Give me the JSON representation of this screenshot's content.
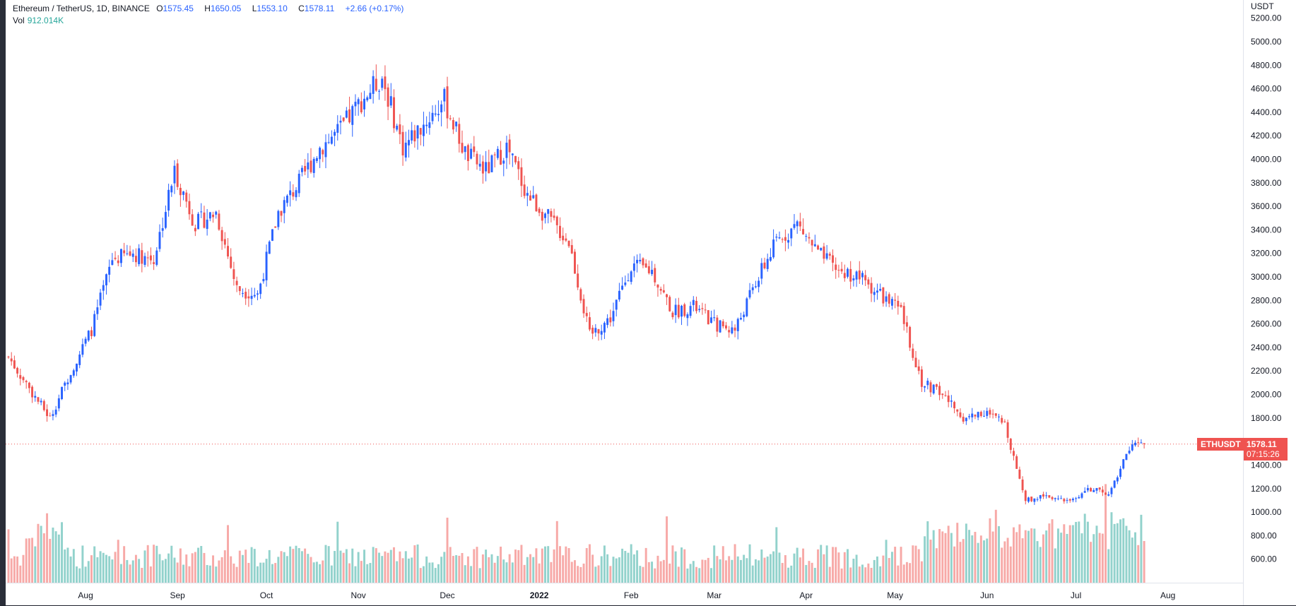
{
  "legend": {
    "symbol": "Ethereum / TetherUS, 1D, BINANCE",
    "open_label": "O",
    "open": "1575.45",
    "high_label": "H",
    "high": "1650.05",
    "low_label": "L",
    "low": "1553.10",
    "close_label": "C",
    "close": "1578.11",
    "change": "+2.66 (+0.17%)",
    "vol_label": "Vol",
    "vol_value": "912.014K"
  },
  "price_tag": {
    "symbol": "ETHUSDT",
    "price": "1578.11",
    "countdown": "07:15:26"
  },
  "colors": {
    "up": "#2962ff",
    "down": "#ef5350",
    "vol_up": "#26a69a",
    "vol_down": "#ef5350",
    "grid": "#ffffff",
    "text": "#131722"
  },
  "chart_data": {
    "type": "candlestick",
    "title": "",
    "y_unit": "USDT",
    "y_ticks": [
      600,
      800,
      1000,
      1200,
      1400,
      1600,
      1800,
      2000,
      2200,
      2400,
      2600,
      2800,
      3000,
      3200,
      3400,
      3600,
      3800,
      4000,
      4200,
      4400,
      4600,
      4800,
      5000,
      5200
    ],
    "y_tick_labels": [
      "600.00",
      "800.00",
      "1000.00",
      "1200.00",
      "1400.00",
      "1600.00",
      "1800.00",
      "2000.00",
      "2200.00",
      "2400.00",
      "2600.00",
      "2800.00",
      "3000.00",
      "3200.00",
      "3400.00",
      "3600.00",
      "3800.00",
      "4000.00",
      "4200.00",
      "4400.00",
      "4600.00",
      "4800.00",
      "5000.00",
      "5200.00"
    ],
    "ylim": [
      490,
      5270
    ],
    "x_ticks": [
      {
        "date": "2021-08-01",
        "label": "Aug"
      },
      {
        "date": "2021-09-01",
        "label": "Sep"
      },
      {
        "date": "2021-10-01",
        "label": "Oct"
      },
      {
        "date": "2021-11-01",
        "label": "Nov"
      },
      {
        "date": "2021-12-01",
        "label": "Dec"
      },
      {
        "date": "2022-01-01",
        "label": "2022"
      },
      {
        "date": "2022-02-01",
        "label": "Feb"
      },
      {
        "date": "2022-03-01",
        "label": "Mar"
      },
      {
        "date": "2022-04-01",
        "label": "Apr"
      },
      {
        "date": "2022-05-01",
        "label": "May"
      },
      {
        "date": "2022-06-01",
        "label": "Jun"
      },
      {
        "date": "2022-07-01",
        "label": "Jul"
      },
      {
        "date": "2022-08-01",
        "label": "Aug"
      }
    ],
    "xlim": [
      "2021-07-06",
      "2022-08-23"
    ],
    "close_series_weekly": [
      {
        "date": "2021-07-06",
        "close": 2320
      },
      {
        "date": "2021-07-13",
        "close": 2050
      },
      {
        "date": "2021-07-20",
        "close": 1800
      },
      {
        "date": "2021-07-27",
        "close": 2200
      },
      {
        "date": "2021-08-03",
        "close": 2550
      },
      {
        "date": "2021-08-10",
        "close": 3150
      },
      {
        "date": "2021-08-17",
        "close": 3200
      },
      {
        "date": "2021-08-24",
        "close": 3150
      },
      {
        "date": "2021-08-31",
        "close": 3900
      },
      {
        "date": "2021-09-07",
        "close": 3450
      },
      {
        "date": "2021-09-14",
        "close": 3550
      },
      {
        "date": "2021-09-21",
        "close": 2900
      },
      {
        "date": "2021-09-28",
        "close": 2850
      },
      {
        "date": "2021-10-05",
        "close": 3550
      },
      {
        "date": "2021-10-12",
        "close": 3800
      },
      {
        "date": "2021-10-19",
        "close": 4100
      },
      {
        "date": "2021-10-26",
        "close": 4250
      },
      {
        "date": "2021-11-02",
        "close": 4500
      },
      {
        "date": "2021-11-09",
        "close": 4700
      },
      {
        "date": "2021-11-16",
        "close": 4100
      },
      {
        "date": "2021-11-23",
        "close": 4300
      },
      {
        "date": "2021-11-30",
        "close": 4500
      },
      {
        "date": "2021-12-07",
        "close": 4050
      },
      {
        "date": "2021-12-14",
        "close": 3900
      },
      {
        "date": "2021-12-21",
        "close": 4100
      },
      {
        "date": "2021-12-28",
        "close": 3700
      },
      {
        "date": "2022-01-04",
        "close": 3500
      },
      {
        "date": "2022-01-11",
        "close": 3300
      },
      {
        "date": "2022-01-18",
        "close": 2500
      },
      {
        "date": "2022-01-25",
        "close": 2650
      },
      {
        "date": "2022-02-01",
        "close": 3100
      },
      {
        "date": "2022-02-08",
        "close": 3050
      },
      {
        "date": "2022-02-15",
        "close": 2700
      },
      {
        "date": "2022-02-22",
        "close": 2750
      },
      {
        "date": "2022-03-01",
        "close": 2600
      },
      {
        "date": "2022-03-08",
        "close": 2550
      },
      {
        "date": "2022-03-15",
        "close": 2950
      },
      {
        "date": "2022-03-22",
        "close": 3300
      },
      {
        "date": "2022-03-29",
        "close": 3450
      },
      {
        "date": "2022-04-05",
        "close": 3200
      },
      {
        "date": "2022-04-12",
        "close": 3050
      },
      {
        "date": "2022-04-19",
        "close": 3000
      },
      {
        "date": "2022-04-26",
        "close": 2850
      },
      {
        "date": "2022-05-03",
        "close": 2700
      },
      {
        "date": "2022-05-10",
        "close": 2100
      },
      {
        "date": "2022-05-17",
        "close": 2000
      },
      {
        "date": "2022-05-24",
        "close": 1800
      },
      {
        "date": "2022-05-31",
        "close": 1850
      },
      {
        "date": "2022-06-07",
        "close": 1750
      },
      {
        "date": "2022-06-14",
        "close": 1100
      },
      {
        "date": "2022-06-21",
        "close": 1150
      },
      {
        "date": "2022-06-28",
        "close": 1080
      },
      {
        "date": "2022-07-05",
        "close": 1200
      },
      {
        "date": "2022-07-12",
        "close": 1150
      },
      {
        "date": "2022-07-19",
        "close": 1550
      },
      {
        "date": "2022-07-24",
        "close": 1578
      }
    ],
    "last_price": 1578.11,
    "volume_series": {
      "name": "Vol",
      "last": "912.014K"
    }
  }
}
